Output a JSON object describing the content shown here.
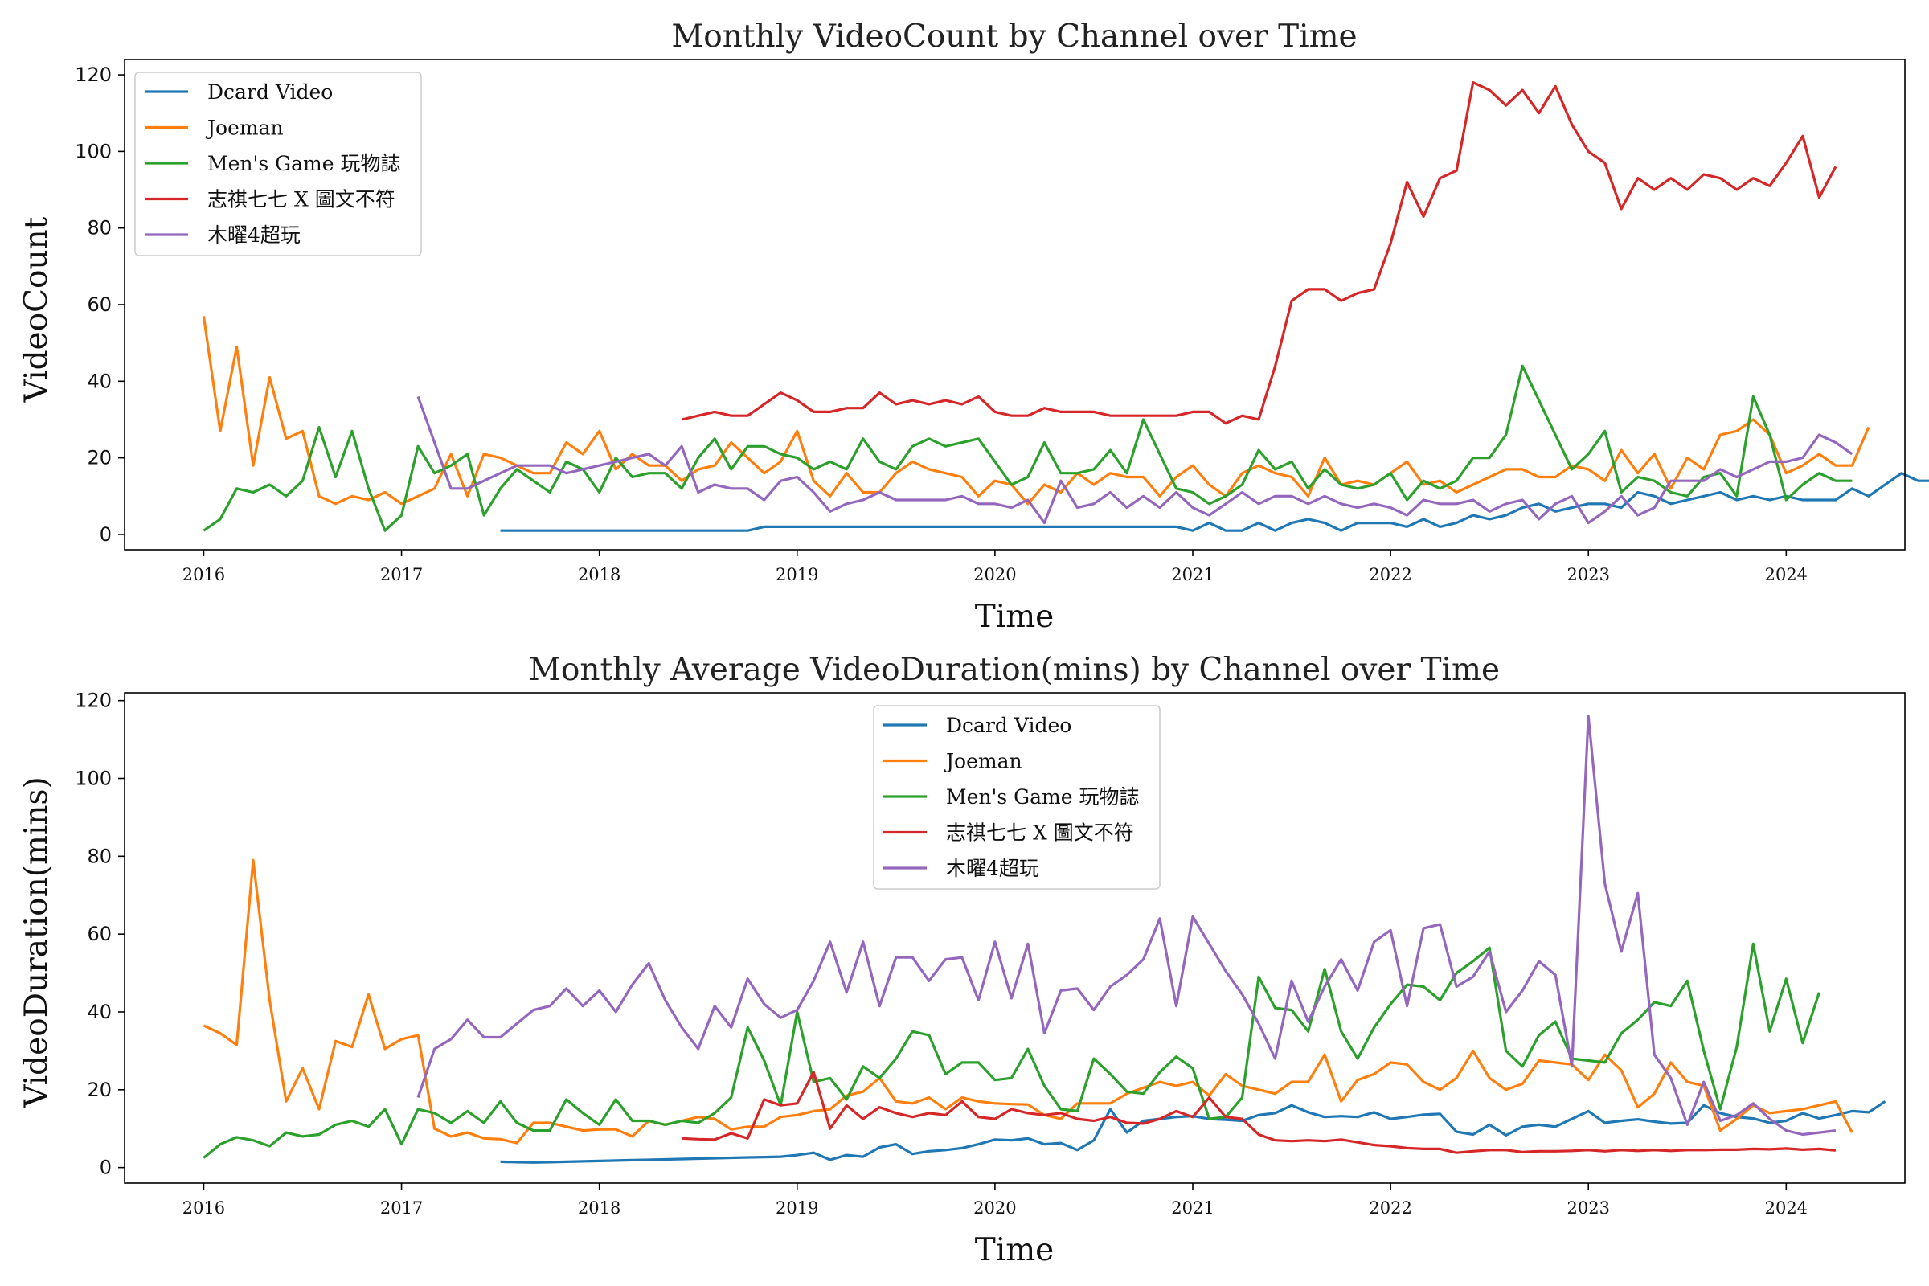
{
  "chart_data": [
    {
      "type": "line",
      "title": "Monthly VideoCount by Channel over Time",
      "xlabel": "Time",
      "ylabel": "VideoCount",
      "xlim": [
        2015.6,
        2024.6
      ],
      "ylim": [
        -4,
        124
      ],
      "xticks": [
        "2016",
        "2017",
        "2018",
        "2019",
        "2020",
        "2021",
        "2022",
        "2023",
        "2024"
      ],
      "yticks": [
        "0",
        "20",
        "40",
        "60",
        "80",
        "100",
        "120"
      ],
      "legend": "upper-left",
      "grid": false,
      "series": [
        {
          "name": "Dcard Video",
          "color": "#1f77b4",
          "start": 2017.5,
          "values": [
            1,
            1,
            1,
            1,
            1,
            1,
            1,
            1,
            1,
            1,
            1,
            1,
            1,
            1,
            1,
            1,
            2,
            2,
            2,
            2,
            2,
            2,
            2,
            2,
            2,
            2,
            2,
            2,
            2,
            2,
            2,
            2,
            2,
            2,
            2,
            2,
            2,
            2,
            2,
            2,
            2,
            2,
            1,
            3,
            1,
            1,
            3,
            1,
            3,
            4,
            3,
            1,
            3,
            3,
            3,
            2,
            4,
            2,
            3,
            5,
            4,
            5,
            7,
            8,
            6,
            7,
            8,
            8,
            7,
            11,
            10,
            8,
            9,
            10,
            11,
            9,
            10,
            9,
            10,
            9,
            9,
            9,
            12,
            10,
            13,
            16,
            14,
            14,
            16,
            12,
            16,
            14,
            12,
            13,
            14,
            14,
            10,
            11,
            15,
            15,
            15,
            15,
            15,
            16,
            15,
            13,
            14,
            17,
            17,
            11,
            12,
            15
          ]
        },
        {
          "name": "Joeman",
          "color": "#ff7f0e",
          "start": 2016.0,
          "values": [
            57,
            27,
            49,
            18,
            41,
            25,
            27,
            10,
            8,
            10,
            9,
            11,
            8,
            10,
            12,
            21,
            10,
            21,
            20,
            18,
            16,
            16,
            24,
            21,
            27,
            17,
            21,
            18,
            18,
            14,
            17,
            18,
            24,
            20,
            16,
            19,
            27,
            14,
            10,
            16,
            11,
            11,
            16,
            19,
            17,
            16,
            15,
            10,
            14,
            13,
            8,
            13,
            11,
            16,
            13,
            16,
            15,
            15,
            10,
            15,
            18,
            13,
            10,
            16,
            18,
            16,
            15,
            10,
            20,
            13,
            14,
            13,
            16,
            19,
            13,
            14,
            11,
            13,
            15,
            17,
            17,
            15,
            15,
            18,
            17,
            14,
            22,
            16,
            21,
            12,
            20,
            17,
            26,
            27,
            30,
            26,
            16,
            18,
            21,
            18,
            18,
            28
          ]
        },
        {
          "name": "Men's Game 玩物誌",
          "color": "#2ca02c",
          "start": 2016.0,
          "values": [
            1,
            4,
            12,
            11,
            13,
            10,
            14,
            28,
            15,
            27,
            12,
            1,
            5,
            23,
            16,
            18,
            21,
            5,
            12,
            17,
            14,
            11,
            19,
            17,
            11,
            20,
            15,
            16,
            16,
            12,
            20,
            25,
            17,
            23,
            23,
            21,
            20,
            17,
            19,
            17,
            25,
            19,
            17,
            23,
            25,
            23,
            24,
            25,
            19,
            13,
            15,
            24,
            16,
            16,
            17,
            22,
            16,
            30,
            21,
            12,
            11,
            8,
            10,
            13,
            22,
            17,
            19,
            12,
            17,
            13,
            12,
            13,
            16,
            9,
            14,
            12,
            14,
            20,
            20,
            26,
            44,
            35,
            26,
            17,
            21,
            27,
            11,
            15,
            14,
            11,
            10,
            15,
            16,
            10,
            36,
            26,
            9,
            13,
            16,
            14,
            14
          ]
        },
        {
          "name": "志祺七七 X 圖文不符",
          "color": "#d62728",
          "start": 2018.4167,
          "values": [
            30,
            31,
            32,
            31,
            31,
            34,
            37,
            35,
            32,
            32,
            33,
            33,
            37,
            34,
            35,
            34,
            35,
            34,
            36,
            32,
            31,
            31,
            33,
            32,
            32,
            32,
            31,
            31,
            31,
            31,
            31,
            32,
            32,
            29,
            31,
            30,
            44,
            61,
            64,
            64,
            61,
            63,
            64,
            76,
            92,
            83,
            93,
            95,
            118,
            116,
            112,
            116,
            110,
            117,
            107,
            100,
            97,
            85,
            93,
            90,
            93,
            90,
            94,
            93,
            90,
            93,
            91,
            97,
            104,
            88,
            96
          ]
        },
        {
          "name": "木曜4超玩",
          "color": "#9467bd",
          "start": 2017.0833,
          "values": [
            36,
            24,
            12,
            12,
            14,
            16,
            18,
            18,
            18,
            16,
            17,
            18,
            19,
            20,
            21,
            18,
            23,
            11,
            13,
            12,
            12,
            9,
            14,
            15,
            11,
            6,
            8,
            9,
            11,
            9,
            9,
            9,
            9,
            10,
            8,
            8,
            7,
            9,
            3,
            14,
            7,
            8,
            11,
            7,
            10,
            7,
            11,
            7,
            5,
            8,
            11,
            8,
            10,
            10,
            8,
            10,
            8,
            7,
            8,
            7,
            5,
            9,
            8,
            8,
            9,
            6,
            8,
            9,
            4,
            8,
            10,
            3,
            6,
            10,
            5,
            7,
            14,
            14,
            14,
            17,
            15,
            17,
            19,
            19,
            20,
            26,
            24,
            21
          ]
        }
      ]
    },
    {
      "type": "line",
      "title": "Monthly Average VideoDuration(mins) by Channel over Time",
      "xlabel": "Time",
      "ylabel": "VideoDuration(mins)",
      "xlim": [
        2015.6,
        2024.6
      ],
      "ylim": [
        -4,
        122
      ],
      "xticks": [
        "2016",
        "2017",
        "2018",
        "2019",
        "2020",
        "2021",
        "2022",
        "2023",
        "2024"
      ],
      "yticks": [
        "0",
        "20",
        "40",
        "60",
        "80",
        "100",
        "120"
      ],
      "legend": "upper-center",
      "grid": false,
      "series": [
        {
          "name": "Dcard Video",
          "color": "#1f77b4",
          "start": 2017.5,
          "values": [
            1.5,
            1.4,
            1.3,
            1.4,
            1.5,
            1.6,
            1.7,
            1.8,
            1.9,
            2,
            2.1,
            2.2,
            2.3,
            2.4,
            2.5,
            2.6,
            2.7,
            2.8,
            3.2,
            3.8,
            2,
            3.2,
            2.8,
            5.2,
            6,
            3.5,
            4.2,
            4.5,
            5,
            6,
            7.2,
            7,
            7.5,
            6,
            6.3,
            4.5,
            7,
            15,
            9,
            12,
            12.5,
            13,
            13.2,
            12.5,
            12.3,
            12,
            13.5,
            14,
            16,
            14.2,
            13,
            13.2,
            13,
            14.2,
            12.5,
            13,
            13.6,
            13.8,
            9.2,
            8.5,
            11,
            8.3,
            10.5,
            11,
            10.5,
            12.5,
            14.5,
            11.5,
            12,
            12.4,
            11.8,
            11.3,
            11.5,
            16,
            14,
            13,
            12.6,
            11.5,
            12,
            14,
            12.6,
            13.5,
            14.5,
            14.2,
            17
          ]
        },
        {
          "name": "Joeman",
          "color": "#ff7f0e",
          "start": 2016.0,
          "values": [
            36.5,
            34.5,
            31.5,
            79,
            43,
            17,
            25.5,
            15,
            32.5,
            31,
            44.5,
            30.5,
            33,
            34,
            10,
            8,
            9,
            7.5,
            7.3,
            6.3,
            11.5,
            11.5,
            10.5,
            9.5,
            9.8,
            9.8,
            8,
            12,
            11,
            12,
            13,
            12.5,
            9.8,
            10.5,
            10.5,
            13,
            13.5,
            14.5,
            15,
            18.5,
            19.5,
            23,
            17,
            16.5,
            18,
            15,
            18,
            17,
            16.5,
            16.3,
            16.2,
            13.5,
            12.5,
            16.5,
            16.5,
            16.5,
            19,
            20.5,
            22,
            21,
            22,
            18.5,
            24,
            21,
            20,
            19,
            22,
            22,
            29,
            17,
            22.5,
            24,
            27,
            26.5,
            22,
            20,
            23,
            30,
            23,
            20,
            21.5,
            27.5,
            27,
            26.5,
            22.5,
            29,
            25,
            15.5,
            19,
            27,
            22,
            21,
            9.5,
            12.5,
            16,
            14,
            14.5,
            15,
            16,
            17,
            9
          ]
        },
        {
          "name": "Men's Game 玩物誌",
          "color": "#2ca02c",
          "start": 2016.0,
          "values": [
            2.5,
            6,
            7.8,
            7,
            5.5,
            9,
            8,
            8.5,
            11,
            12,
            10.5,
            15,
            6,
            15,
            14,
            11.5,
            14.5,
            11.5,
            17,
            11.5,
            9.5,
            9.5,
            17.5,
            14,
            11,
            17.5,
            12,
            12,
            11,
            12,
            11.5,
            14,
            18,
            36,
            27.5,
            16,
            40,
            22,
            23,
            17.5,
            26,
            23,
            28,
            35,
            34,
            24,
            27,
            27,
            22.5,
            23,
            30.5,
            21,
            15,
            14.5,
            28,
            24,
            19.5,
            19,
            24.5,
            28.5,
            25.5,
            12.5,
            13,
            18,
            49,
            41,
            40.5,
            35,
            51,
            35,
            28,
            36,
            42,
            47,
            46.5,
            43,
            50,
            53,
            56.5,
            30,
            26,
            34,
            37.5,
            28,
            27.5,
            27,
            34.5,
            38,
            42.5,
            41.5,
            48,
            30,
            15,
            31,
            57.5,
            35,
            48.5,
            32,
            45
          ]
        },
        {
          "name": "志祺七七 X 圖文不符",
          "color": "#d62728",
          "start": 2018.4167,
          "values": [
            7.5,
            7.3,
            7.2,
            8.8,
            7.5,
            17.5,
            16,
            16.5,
            24.5,
            10,
            16,
            12.5,
            15.5,
            14,
            13,
            14,
            13.5,
            17,
            13,
            12.5,
            15,
            14,
            13.5,
            14,
            12.5,
            12,
            13,
            11.5,
            11.3,
            12.5,
            14.5,
            13,
            18,
            13,
            12.5,
            8.5,
            7,
            6.8,
            7,
            6.8,
            7.2,
            6.5,
            5.8,
            5.5,
            5,
            4.8,
            4.8,
            3.8,
            4.2,
            4.5,
            4.5,
            4,
            4.2,
            4.2,
            4.3,
            4.5,
            4.2,
            4.5,
            4.3,
            4.5,
            4.3,
            4.5,
            4.5,
            4.6,
            4.6,
            4.8,
            4.7,
            4.9,
            4.6,
            4.8,
            4.4
          ]
        },
        {
          "name": "木曜4超玩",
          "color": "#9467bd",
          "start": 2017.0833,
          "values": [
            18,
            30.5,
            33,
            38,
            33.5,
            33.5,
            37,
            40.5,
            41.5,
            46,
            41.5,
            45.5,
            40,
            47,
            52.5,
            43,
            36,
            30.5,
            41.5,
            36,
            48.5,
            42,
            38.5,
            40.5,
            48,
            58,
            45,
            58,
            41.5,
            54,
            54,
            48,
            53.5,
            54,
            43,
            58,
            43.5,
            57.5,
            34.5,
            45.5,
            46,
            40.5,
            46.5,
            49.5,
            53.5,
            64,
            41.5,
            64.5,
            57.5,
            50.5,
            44.5,
            37,
            28,
            48,
            37.5,
            46.5,
            53.5,
            45.5,
            58,
            61,
            41.5,
            61.5,
            62.5,
            46.5,
            49,
            55.5,
            40,
            45.5,
            53,
            49.5,
            26,
            116,
            73,
            55.5,
            70.5,
            29,
            23,
            11,
            22,
            12,
            13.5,
            16.5,
            12.5,
            9.5,
            8.5,
            9,
            9.5
          ]
        }
      ]
    }
  ]
}
